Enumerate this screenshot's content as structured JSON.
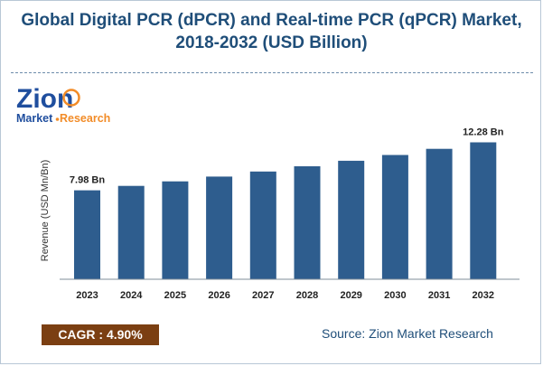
{
  "title": {
    "line1": "Global Digital PCR (dPCR) and Real-time PCR (qPCR) Market,",
    "line2": "2018-2032 (USD Billion)"
  },
  "logo": {
    "brand": "Zion",
    "sub_a": "Market",
    "sub_b": "Research",
    "colors": {
      "blue": "#1f4e9e",
      "orange": "#f28c28"
    }
  },
  "chart_data": {
    "type": "bar",
    "title": "Global Digital PCR (dPCR) and Real-time PCR (qPCR) Market, 2018-2032 (USD Billion)",
    "xlabel": "",
    "ylabel": "Revenue (USD Mn/Bn)",
    "categories": [
      "2023",
      "2024",
      "2025",
      "2026",
      "2027",
      "2028",
      "2029",
      "2030",
      "2031",
      "2032"
    ],
    "values": [
      7.98,
      8.37,
      8.78,
      9.21,
      9.66,
      10.13,
      10.63,
      11.15,
      11.7,
      12.28
    ],
    "data_labels": [
      {
        "index": 0,
        "text": "7.98 Bn"
      },
      {
        "index": 9,
        "text": "12.28 Bn"
      }
    ],
    "ylim": [
      0,
      13.7
    ],
    "grid": false,
    "bar_color": "#2e5d8e"
  },
  "cagr": {
    "label": "CAGR : 4.90%",
    "color": "#7b3f12"
  },
  "source": {
    "text": "Source: Zion Market Research"
  }
}
